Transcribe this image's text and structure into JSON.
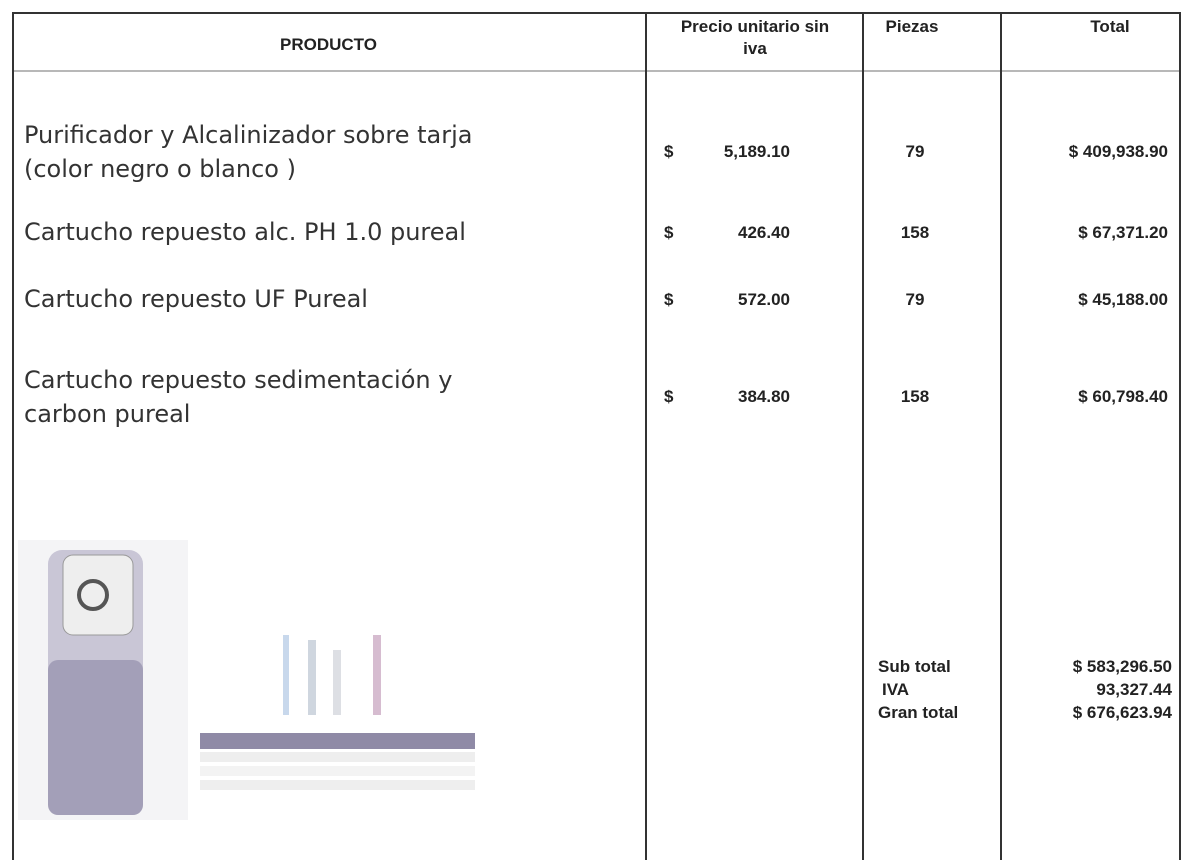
{
  "table": {
    "headers": [
      "PRODUCTO",
      "Precio unitario sin iva",
      "Piezas",
      "Total"
    ],
    "rows": [
      {
        "product": [
          "Purificador y Alcalinizador sobre tarja",
          "(color  negro o blanco  )"
        ],
        "currency": "$",
        "price": "5,189.10",
        "pieces": "79",
        "total": "$ 409,938.90"
      },
      {
        "product": [
          "Cartucho repuesto alc. PH 1.0 pureal"
        ],
        "currency": "$",
        "price": "426.40",
        "pieces": "158",
        "total": "$ 67,371.20"
      },
      {
        "product": [
          "Cartucho repuesto  UF  Pureal"
        ],
        "currency": "$",
        "price": "572.00",
        "pieces": "79",
        "total": "$ 45,188.00"
      },
      {
        "product": [
          "Cartucho repuesto sedimentación y",
          "carbon pureal"
        ],
        "currency": "$",
        "price": "384.80",
        "pieces": "158",
        "total": "$ 60,798.40"
      }
    ],
    "summary": [
      {
        "label": "Sub total",
        "value": "$ 583,296.50"
      },
      {
        "label": "IVA",
        "value": "93,327.44"
      },
      {
        "label": "Gran total",
        "value": "$ 676,623.94"
      }
    ]
  }
}
